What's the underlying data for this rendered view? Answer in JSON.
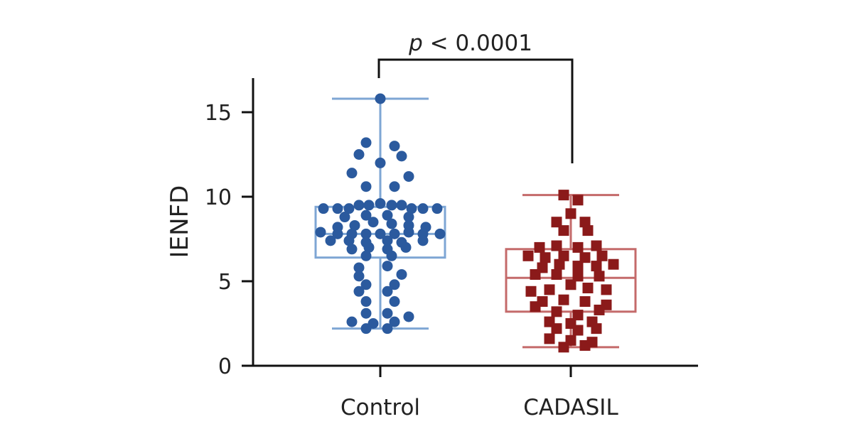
{
  "chart_data": {
    "type": "scatter",
    "subtype": "box-and-dot",
    "title": "",
    "xlabel": "",
    "ylabel": "IENFD",
    "ylim": [
      0,
      16.5
    ],
    "yticks": [
      0,
      5,
      10,
      15
    ],
    "ytick_labels": [
      "0",
      "5",
      "10",
      "15"
    ],
    "categories": [
      "Control",
      "CADASIL"
    ],
    "annotation": {
      "p_symbol": "p",
      "text": " < 0.0001"
    },
    "series": [
      {
        "name": "Control",
        "marker": "circle",
        "color": "#2b5a9e",
        "box_color": "#7ea6d4",
        "box": {
          "min": 2.2,
          "q1": 6.4,
          "median": 7.8,
          "q3": 9.4,
          "max": 15.8
        },
        "points": [
          [
            0,
            15.8
          ],
          [
            -0.1,
            13.2
          ],
          [
            0.1,
            13.0
          ],
          [
            -0.15,
            12.5
          ],
          [
            0.0,
            12.0
          ],
          [
            0.15,
            12.4
          ],
          [
            -0.2,
            11.4
          ],
          [
            0.2,
            11.2
          ],
          [
            -0.1,
            10.6
          ],
          [
            0.1,
            10.6
          ],
          [
            -0.3,
            9.3
          ],
          [
            -0.22,
            9.3
          ],
          [
            -0.15,
            9.5
          ],
          [
            -0.08,
            9.5
          ],
          [
            0.0,
            9.6
          ],
          [
            0.08,
            9.5
          ],
          [
            0.15,
            9.5
          ],
          [
            0.22,
            9.3
          ],
          [
            0.3,
            9.3
          ],
          [
            0.4,
            9.3
          ],
          [
            -0.4,
            9.3
          ],
          [
            -0.25,
            8.8
          ],
          [
            -0.1,
            8.9
          ],
          [
            0.05,
            8.9
          ],
          [
            0.2,
            8.8
          ],
          [
            -0.3,
            8.2
          ],
          [
            -0.18,
            8.3
          ],
          [
            -0.05,
            8.5
          ],
          [
            0.08,
            8.4
          ],
          [
            0.2,
            8.3
          ],
          [
            0.32,
            8.2
          ],
          [
            -0.42,
            7.9
          ],
          [
            -0.3,
            7.8
          ],
          [
            -0.2,
            7.8
          ],
          [
            -0.1,
            7.8
          ],
          [
            0.0,
            7.8
          ],
          [
            0.1,
            7.8
          ],
          [
            0.2,
            7.9
          ],
          [
            0.3,
            7.8
          ],
          [
            0.42,
            7.8
          ],
          [
            -0.35,
            7.4
          ],
          [
            -0.22,
            7.4
          ],
          [
            -0.1,
            7.3
          ],
          [
            0.05,
            7.4
          ],
          [
            0.15,
            7.3
          ],
          [
            0.3,
            7.4
          ],
          [
            -0.2,
            6.9
          ],
          [
            -0.08,
            7.0
          ],
          [
            0.05,
            6.9
          ],
          [
            0.18,
            7.0
          ],
          [
            -0.1,
            6.5
          ],
          [
            0.08,
            6.5
          ],
          [
            -0.15,
            5.8
          ],
          [
            0.05,
            5.9
          ],
          [
            -0.15,
            5.3
          ],
          [
            0.15,
            5.4
          ],
          [
            -0.1,
            4.8
          ],
          [
            0.1,
            4.8
          ],
          [
            -0.15,
            4.4
          ],
          [
            0.05,
            4.4
          ],
          [
            -0.1,
            3.8
          ],
          [
            0.1,
            3.8
          ],
          [
            -0.1,
            3.1
          ],
          [
            0.05,
            3.1
          ],
          [
            0.2,
            2.9
          ],
          [
            -0.2,
            2.6
          ],
          [
            -0.05,
            2.5
          ],
          [
            0.1,
            2.6
          ],
          [
            -0.1,
            2.2
          ],
          [
            0.05,
            2.2
          ]
        ]
      },
      {
        "name": "CADASIL",
        "marker": "square",
        "color": "#8b1a1a",
        "box_color": "#c46a6a",
        "box": {
          "min": 1.1,
          "q1": 3.2,
          "median": 5.2,
          "q3": 6.9,
          "max": 10.1
        },
        "points": [
          [
            -0.05,
            10.1
          ],
          [
            0.05,
            9.8
          ],
          [
            0.0,
            9.0
          ],
          [
            -0.1,
            8.5
          ],
          [
            0.1,
            8.5
          ],
          [
            -0.05,
            8.0
          ],
          [
            0.12,
            8.0
          ],
          [
            -0.22,
            7.0
          ],
          [
            -0.1,
            7.1
          ],
          [
            0.05,
            7.0
          ],
          [
            0.18,
            7.1
          ],
          [
            -0.3,
            6.5
          ],
          [
            -0.18,
            6.4
          ],
          [
            -0.05,
            6.5
          ],
          [
            0.1,
            6.4
          ],
          [
            0.22,
            6.5
          ],
          [
            -0.2,
            5.8
          ],
          [
            -0.08,
            6.0
          ],
          [
            0.05,
            5.9
          ],
          [
            0.18,
            5.9
          ],
          [
            0.3,
            6.0
          ],
          [
            -0.25,
            5.4
          ],
          [
            -0.1,
            5.4
          ],
          [
            0.05,
            5.3
          ],
          [
            0.2,
            5.3
          ],
          [
            -0.28,
            4.4
          ],
          [
            -0.15,
            4.5
          ],
          [
            0.0,
            4.8
          ],
          [
            0.12,
            4.6
          ],
          [
            0.25,
            4.5
          ],
          [
            -0.2,
            3.8
          ],
          [
            -0.05,
            3.9
          ],
          [
            0.1,
            3.8
          ],
          [
            0.25,
            3.6
          ],
          [
            -0.25,
            3.5
          ],
          [
            -0.1,
            3.2
          ],
          [
            0.05,
            3.0
          ],
          [
            0.2,
            3.3
          ],
          [
            -0.15,
            2.6
          ],
          [
            0.0,
            2.5
          ],
          [
            0.15,
            2.6
          ],
          [
            -0.1,
            2.2
          ],
          [
            0.05,
            2.1
          ],
          [
            0.18,
            2.2
          ],
          [
            -0.15,
            1.6
          ],
          [
            0.0,
            1.5
          ],
          [
            0.15,
            1.4
          ],
          [
            -0.05,
            1.1
          ],
          [
            0.1,
            1.2
          ]
        ]
      }
    ]
  }
}
